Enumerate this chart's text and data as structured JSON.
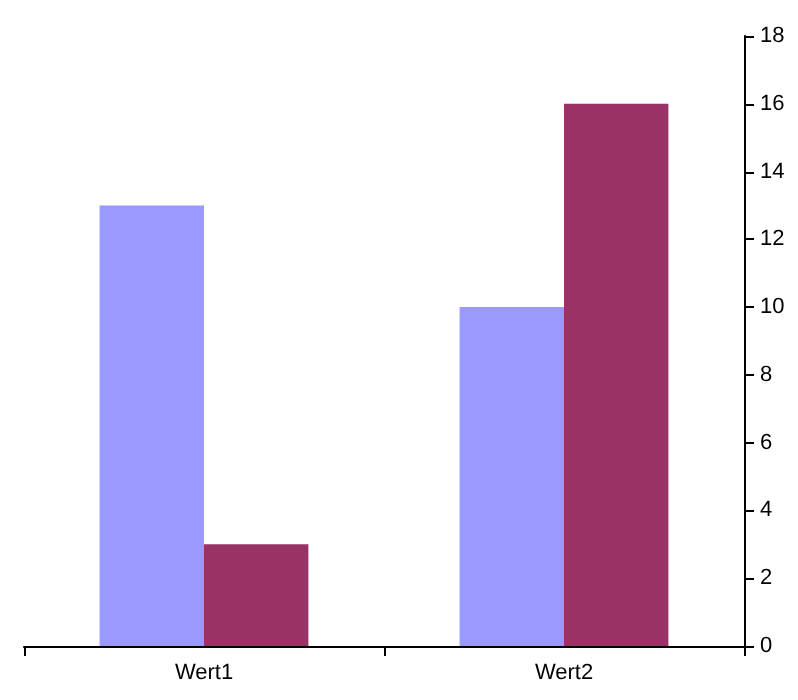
{
  "chart_data": {
    "type": "bar",
    "categories": [
      "Wert1",
      "Wert2"
    ],
    "series": [
      {
        "color": "#9999ff",
        "values": [
          13,
          10
        ]
      },
      {
        "color": "#993366",
        "values": [
          3,
          16
        ]
      }
    ],
    "ylim": [
      0,
      18
    ],
    "yticks": [
      0,
      2,
      4,
      6,
      8,
      10,
      12,
      14,
      16,
      18
    ],
    "grid": false
  }
}
